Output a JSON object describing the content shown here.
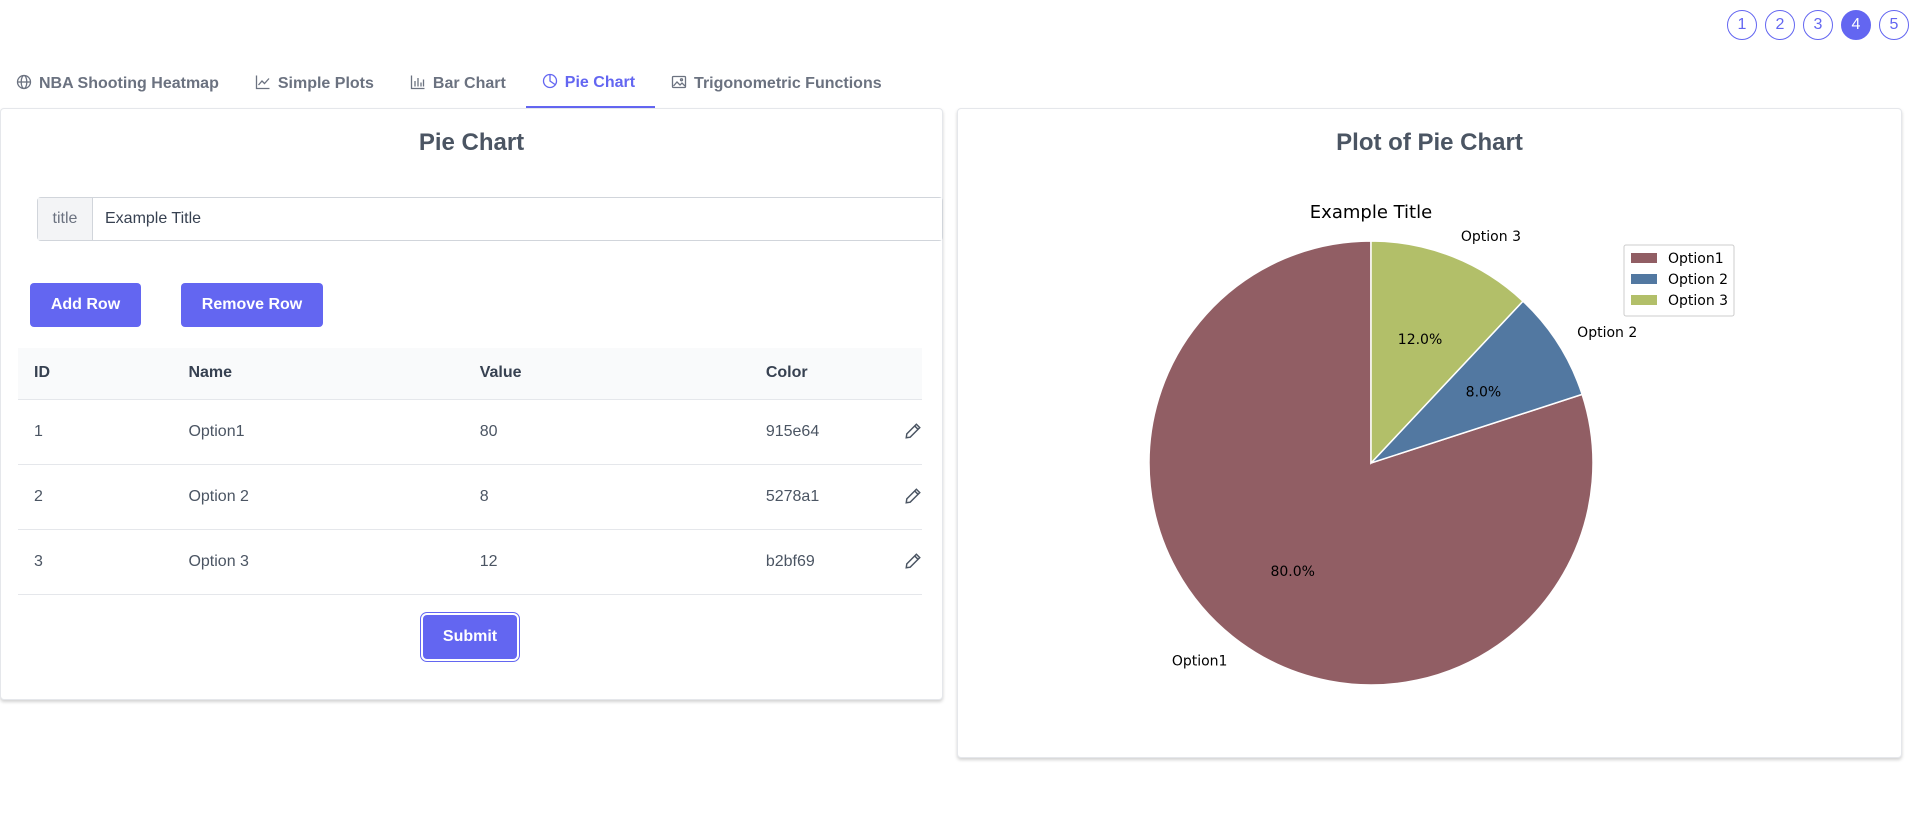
{
  "pagination": {
    "pages": [
      "1",
      "2",
      "3",
      "4",
      "5"
    ],
    "active_index": 3
  },
  "tabs": [
    {
      "label": "NBA Shooting Heatmap",
      "icon": "globe-icon"
    },
    {
      "label": "Simple Plots",
      "icon": "line-chart-icon"
    },
    {
      "label": "Bar Chart",
      "icon": "bar-chart-icon"
    },
    {
      "label": "Pie Chart",
      "icon": "pie-chart-icon",
      "active": true
    },
    {
      "label": "Trigonometric Functions",
      "icon": "image-icon"
    }
  ],
  "form": {
    "title": "Pie Chart",
    "title_field": {
      "label": "title",
      "value": "Example Title"
    },
    "add_row_label": "Add Row",
    "remove_row_label": "Remove Row",
    "submit_label": "Submit",
    "table": {
      "headers": [
        "ID",
        "Name",
        "Value",
        "Color"
      ],
      "rows": [
        {
          "id": "1",
          "name": "Option1",
          "value": "80",
          "color": "915e64"
        },
        {
          "id": "2",
          "name": "Option 2",
          "value": "8",
          "color": "5278a1"
        },
        {
          "id": "3",
          "name": "Option 3",
          "value": "12",
          "color": "b2bf69"
        }
      ]
    }
  },
  "plot": {
    "title": "Plot of Pie Chart"
  },
  "accent_color": "#6366f1",
  "chart_data": {
    "type": "pie",
    "title": "Example Title",
    "categories": [
      "Option1",
      "Option 2",
      "Option 3"
    ],
    "values": [
      80,
      8,
      12
    ],
    "percent_labels": [
      "80.0%",
      "8.0%",
      "12.0%"
    ],
    "colors": [
      "#915e64",
      "#5278a1",
      "#b2bf69"
    ],
    "legend": "top-right"
  }
}
